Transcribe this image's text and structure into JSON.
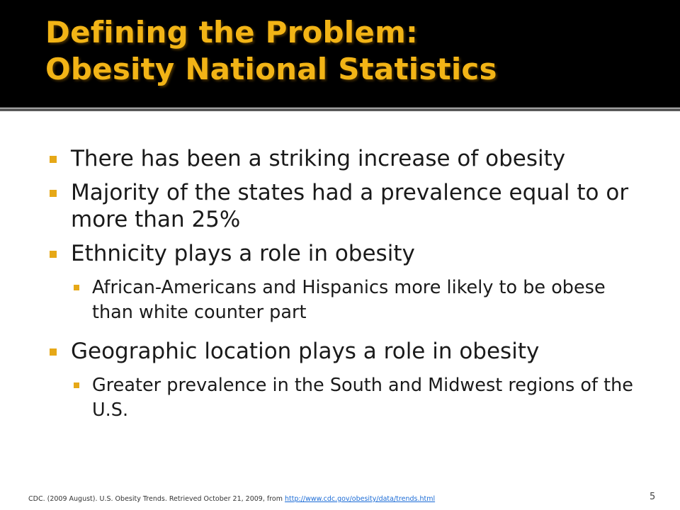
{
  "slide": {
    "title_line1": "Defining the Problem:",
    "title_line2": "Obesity National Statistics",
    "bullets": [
      "There has been a striking increase of obesity",
      "Majority of the states had a prevalence equal to or more than 25%",
      "Ethnicity plays a role in obesity",
      "Geographic location plays a role in obesity"
    ],
    "sub_bullets": [
      "African-Americans and Hispanics more likely to be obese than white counter part",
      "Greater prevalence in the South and Midwest regions of the U.S."
    ],
    "footer_text": "CDC. (2009 August). U.S. Obesity Trends. Retrieved October 21, 2009, from ",
    "footer_link": "http://www.cdc.gov/obesity/data/trends.html",
    "page_number": "5"
  },
  "colors": {
    "title_bar": "#000000",
    "title_text": "#f2b416",
    "bullet_marker": "#e6a817",
    "body_text": "#1a1a1a",
    "link": "#1a6bd6"
  }
}
